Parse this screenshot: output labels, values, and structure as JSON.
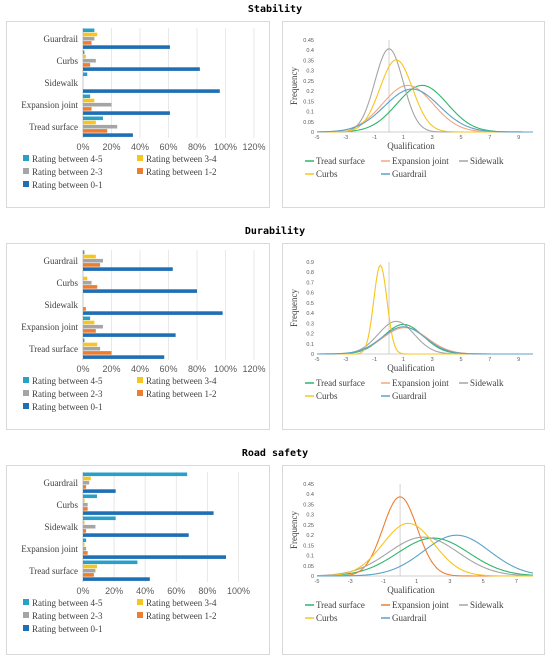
{
  "sections": [
    {
      "title": "Stability",
      "bar_chart": {
        "type": "bar",
        "orientation": "horizontal",
        "categories": [
          "Guardrail",
          "Curbs",
          "Sidewalk",
          "Expansion joint",
          "Tread surface"
        ],
        "series": [
          {
            "name": "Rating between 4-5",
            "color": "#2aa0c8",
            "values": [
              8,
              1,
              3,
              5,
              14
            ]
          },
          {
            "name": "Rating between 3-4",
            "color": "#f7c51e",
            "values": [
              10,
              2,
              0,
              8,
              9
            ]
          },
          {
            "name": "Rating between 2-3",
            "color": "#a5a5a5",
            "values": [
              8,
              9,
              0,
              20,
              24
            ]
          },
          {
            "name": "Rating between 1-2",
            "color": "#ed7d31",
            "values": [
              6,
              5,
              0,
              6,
              17
            ]
          },
          {
            "name": "Rating between 0-1",
            "color": "#1f6fb6",
            "values": [
              61,
              82,
              96,
              61,
              35
            ]
          }
        ],
        "xticks": [
          "0%",
          "20%",
          "40%",
          "60%",
          "80%",
          "100%",
          "120%"
        ],
        "xlim": [
          0,
          120
        ]
      },
      "line_chart": {
        "type": "line",
        "ylabel": "Frequency",
        "xlabel": "Qualification",
        "xticks": [
          "-5",
          "-3",
          "-1",
          "1",
          "3",
          "5",
          "7",
          "9"
        ],
        "yticks": [
          "0",
          "0.05",
          "0.1",
          "0.15",
          "0.2",
          "0.25",
          "0.3",
          "0.35",
          "0.4",
          "0.45"
        ],
        "xlim": [
          -5,
          10
        ],
        "ylim": [
          0,
          0.45
        ],
        "series": [
          {
            "name": "Tread surface",
            "color": "#2eb66b",
            "mean": 2.3,
            "sd": 1.75
          },
          {
            "name": "Expansion joint",
            "color": "#f4a582",
            "mean": 1.3,
            "sd": 1.75
          },
          {
            "name": "Sidewalk",
            "color": "#a5a5a5",
            "mean": 0.0,
            "sd": 0.98
          },
          {
            "name": "Curbs",
            "color": "#f7c51e",
            "mean": 0.5,
            "sd": 1.13
          },
          {
            "name": "Guardrail",
            "color": "#5ba3c7",
            "mean": 1.6,
            "sd": 1.9
          }
        ]
      }
    },
    {
      "title": "Durability",
      "bar_chart": {
        "type": "bar",
        "orientation": "horizontal",
        "categories": [
          "Guardrail",
          "Curbs",
          "Sidewalk",
          "Expansion joint",
          "Tread surface"
        ],
        "series": [
          {
            "name": "Rating between 4-5",
            "color": "#2aa0c8",
            "values": [
              1,
              0,
              0,
              5,
              1
            ]
          },
          {
            "name": "Rating between 3-4",
            "color": "#f7c51e",
            "values": [
              9,
              3,
              0,
              8,
              10
            ]
          },
          {
            "name": "Rating between 2-3",
            "color": "#a5a5a5",
            "values": [
              14,
              6,
              0,
              14,
              12
            ]
          },
          {
            "name": "Rating between 1-2",
            "color": "#ed7d31",
            "values": [
              12,
              10,
              2,
              9,
              20
            ]
          },
          {
            "name": "Rating between 0-1",
            "color": "#1f6fb6",
            "values": [
              63,
              80,
              98,
              65,
              57
            ]
          }
        ],
        "xticks": [
          "0%",
          "20%",
          "40%",
          "60%",
          "80%",
          "100%",
          "120%"
        ],
        "xlim": [
          0,
          120
        ]
      },
      "line_chart": {
        "type": "line",
        "ylabel": "Frequency",
        "xlabel": "Qualification",
        "xticks": [
          "-5",
          "-3",
          "-1",
          "1",
          "3",
          "5",
          "7",
          "9"
        ],
        "yticks": [
          "0",
          "0.1",
          "0.2",
          "0.3",
          "0.4",
          "0.5",
          "0.6",
          "0.7",
          "0.8",
          "0.9"
        ],
        "xlim": [
          -5,
          10
        ],
        "ylim": [
          0,
          0.9
        ],
        "series": [
          {
            "name": "Tread surface",
            "color": "#2eb66b",
            "mean": 1.0,
            "sd": 1.38
          },
          {
            "name": "Expansion joint",
            "color": "#f4a582",
            "mean": 1.1,
            "sd": 1.55
          },
          {
            "name": "Sidewalk",
            "color": "#a5a5a5",
            "mean": 0.5,
            "sd": 1.25
          },
          {
            "name": "Curbs",
            "color": "#f7c51e",
            "mean": -0.6,
            "sd": 0.46
          },
          {
            "name": "Guardrail",
            "color": "#5ba3c7",
            "mean": 1.0,
            "sd": 1.5
          }
        ]
      }
    },
    {
      "title": "Road safety",
      "bar_chart": {
        "type": "bar",
        "orientation": "horizontal",
        "categories": [
          "Guardrail",
          "Curbs",
          "Sidewalk",
          "Expansion joint",
          "Tread surface"
        ],
        "series": [
          {
            "name": "Rating between 4-5",
            "color": "#2aa0c8",
            "values": [
              67,
              9,
              21,
              2,
              35
            ]
          },
          {
            "name": "Rating between 3-4",
            "color": "#f7c51e",
            "values": [
              5,
              1,
              1,
              1,
              9
            ]
          },
          {
            "name": "Rating between 2-3",
            "color": "#a5a5a5",
            "values": [
              4,
              3,
              8,
              2,
              8
            ]
          },
          {
            "name": "Rating between 1-2",
            "color": "#ed7d31",
            "values": [
              2,
              3,
              2,
              3,
              7
            ]
          },
          {
            "name": "Rating between 0-1",
            "color": "#1f6fb6",
            "values": [
              21,
              84,
              68,
              92,
              43
            ]
          }
        ],
        "xticks": [
          "0%",
          "20%",
          "40%",
          "60%",
          "80%",
          "100%"
        ],
        "xlim": [
          0,
          110
        ]
      },
      "line_chart": {
        "type": "line",
        "ylabel": "Frequency",
        "xlabel": "Qualification",
        "xticks": [
          "-5",
          "-3",
          "-1",
          "1",
          "3",
          "5",
          "7"
        ],
        "yticks": [
          "0",
          "0.05",
          "0.1",
          "0.15",
          "0.2",
          "0.25",
          "0.3",
          "0.35",
          "0.4",
          "0.45"
        ],
        "xlim": [
          -5,
          8
        ],
        "ylim": [
          0,
          0.45
        ],
        "series": [
          {
            "name": "Tread surface",
            "color": "#2eb66b",
            "mean": 2.0,
            "sd": 2.15
          },
          {
            "name": "Expansion joint",
            "color": "#ed7d31",
            "mean": 0.0,
            "sd": 1.03
          },
          {
            "name": "Sidewalk",
            "color": "#a5a5a5",
            "mean": 1.4,
            "sd": 2.1
          },
          {
            "name": "Curbs",
            "color": "#f7c51e",
            "mean": 0.5,
            "sd": 1.55
          },
          {
            "name": "Guardrail",
            "color": "#5ba3c7",
            "mean": 3.4,
            "sd": 2.0
          }
        ]
      }
    }
  ]
}
